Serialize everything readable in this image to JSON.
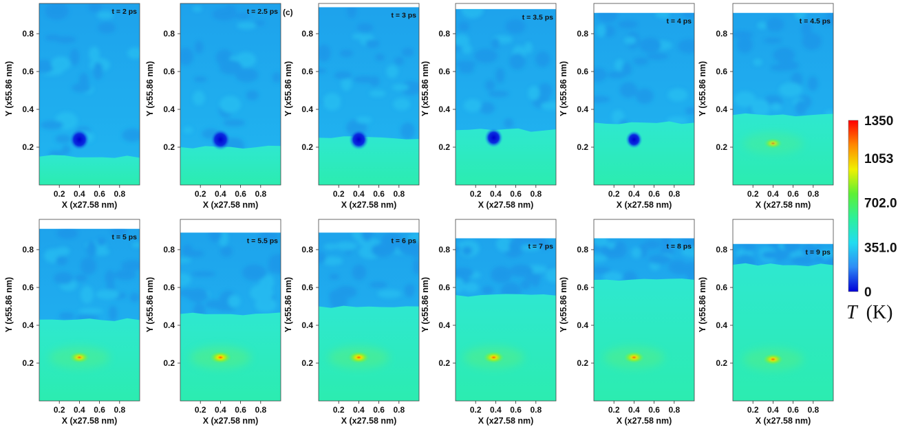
{
  "chart_data": {
    "type": "heatmap",
    "grid_layout": {
      "rows": 2,
      "cols": 6
    },
    "xlabel": "X (x27.58 nm)",
    "ylabel": "Y (x55.86 nm)",
    "xlim": [
      0.0,
      1.0
    ],
    "ylim": [
      0.0,
      0.96
    ],
    "x_ticks": [
      "0.2",
      "0.4",
      "0.6",
      "0.8"
    ],
    "y_ticks": [
      "0.2",
      "0.4",
      "0.6",
      "0.8"
    ],
    "panel_tag": "(c)",
    "colorbar": {
      "title_var": "T",
      "title_unit": "(K)",
      "range": [
        0,
        1350
      ],
      "ticks": [
        "1350",
        "1053",
        "702.0",
        "351.0",
        "0"
      ],
      "colors": [
        "#0000d8",
        "#2e8cf5",
        "#22dcf0",
        "#2cf09a",
        "#5cf035",
        "#f0f000",
        "#ff8800",
        "#ff0000"
      ]
    },
    "panels": [
      {
        "time": "t = 2 ps",
        "top": 0.96,
        "interface": 0.15,
        "spot": {
          "x": 0.4,
          "y": 0.24,
          "kind": "cold",
          "intensity": 1.0
        }
      },
      {
        "time": "t = 2.5 ps",
        "top": 0.96,
        "interface": 0.2,
        "spot": {
          "x": 0.4,
          "y": 0.24,
          "kind": "cold",
          "intensity": 1.0
        }
      },
      {
        "time": "t = 3 ps",
        "top": 0.94,
        "interface": 0.25,
        "spot": {
          "x": 0.4,
          "y": 0.24,
          "kind": "cold",
          "intensity": 0.9
        }
      },
      {
        "time": "t = 3.5 ps",
        "top": 0.93,
        "interface": 0.29,
        "spot": {
          "x": 0.38,
          "y": 0.25,
          "kind": "cold",
          "intensity": 0.75
        }
      },
      {
        "time": "t = 4 ps",
        "top": 0.91,
        "interface": 0.33,
        "spot": {
          "x": 0.4,
          "y": 0.24,
          "kind": "cold",
          "intensity": 0.55
        }
      },
      {
        "time": "t = 4.5 ps",
        "top": 0.91,
        "interface": 0.37,
        "spot": {
          "x": 0.4,
          "y": 0.22,
          "kind": "warm",
          "intensity": 0.45
        }
      },
      {
        "time": "t = 5 ps",
        "top": 0.91,
        "interface": 0.43,
        "spot": {
          "x": 0.4,
          "y": 0.23,
          "kind": "warm",
          "intensity": 0.75
        }
      },
      {
        "time": "t = 5.5 ps",
        "top": 0.89,
        "interface": 0.46,
        "spot": {
          "x": 0.4,
          "y": 0.23,
          "kind": "warm",
          "intensity": 1.0
        }
      },
      {
        "time": "t = 6 ps",
        "top": 0.89,
        "interface": 0.5,
        "spot": {
          "x": 0.4,
          "y": 0.23,
          "kind": "warm",
          "intensity": 0.95
        }
      },
      {
        "time": "t = 7 ps",
        "top": 0.86,
        "interface": 0.56,
        "spot": {
          "x": 0.38,
          "y": 0.23,
          "kind": "warm",
          "intensity": 0.9
        }
      },
      {
        "time": "t = 8 ps",
        "top": 0.86,
        "interface": 0.64,
        "spot": {
          "x": 0.4,
          "y": 0.23,
          "kind": "warm",
          "intensity": 0.85
        }
      },
      {
        "time": "t = 9 ps",
        "top": 0.83,
        "interface": 0.72,
        "spot": {
          "x": 0.4,
          "y": 0.22,
          "kind": "warm",
          "intensity": 0.8
        }
      }
    ]
  }
}
